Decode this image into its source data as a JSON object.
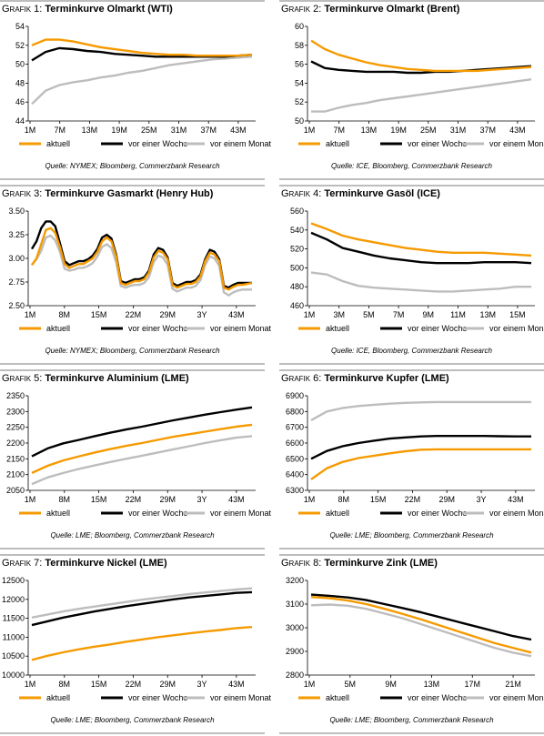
{
  "colors": {
    "aktuell": "#f59a00",
    "woche": "#000000",
    "monat": "#bdbdbd",
    "rule": "#bdbdbd"
  },
  "legend": {
    "aktuell": "aktuell",
    "woche": "vor einer Woche",
    "monat": "vor einem Monat"
  },
  "grafik_label": "Grafik",
  "charts": [
    {
      "number": "1:",
      "title": "Terminkurve Olmarkt (WTI)",
      "source": "Quelle: NYMEX; Bloomberg, Commerzbank Research",
      "ylim": [
        44,
        54
      ],
      "yticks": [
        "44",
        "46",
        "48",
        "50",
        "52",
        "54"
      ],
      "xticks": [
        "1M",
        "7M",
        "13M",
        "19M",
        "25M",
        "31M",
        "37M",
        "43M"
      ]
    },
    {
      "number": "2:",
      "title": "Terminkurve Olmarkt (Brent)",
      "source": "Quelle: ICE, Bloomberg, Commerzbank Research",
      "ylim": [
        50,
        60
      ],
      "yticks": [
        "50",
        "52",
        "54",
        "56",
        "58",
        "60"
      ],
      "xticks": [
        "1M",
        "7M",
        "13M",
        "19M",
        "25M",
        "31M",
        "37M",
        "43M"
      ]
    },
    {
      "number": "3:",
      "title": "Terminkurve Gasmarkt (Henry Hub)",
      "source": "Quelle: NYMEX; Bloomberg, Commerzbank Research",
      "ylim": [
        2.5,
        3.5
      ],
      "yticks": [
        "2.50",
        "2.75",
        "3.00",
        "3.25",
        "3.50"
      ],
      "xticks": [
        "1M",
        "8M",
        "15M",
        "22M",
        "29M",
        "3Y",
        "43M"
      ]
    },
    {
      "number": "4:",
      "title": "Terminkurve Gasöl (ICE)",
      "source": "Quelle: ICE, Bloomberg, Commerzbank Research",
      "ylim": [
        460,
        560
      ],
      "yticks": [
        "460",
        "480",
        "500",
        "520",
        "540",
        "560"
      ],
      "xticks": [
        "1M",
        "3M",
        "5M",
        "7M",
        "9M",
        "11M",
        "13M",
        "15M"
      ]
    },
    {
      "number": "5:",
      "title": " Terminkurve Aluminium (LME)",
      "source": "Quelle: LME; Bloomberg, Commerzbank Research",
      "ylim": [
        2050,
        2350
      ],
      "yticks": [
        "2050",
        "2100",
        "2150",
        "2200",
        "2250",
        "2300",
        "2350"
      ],
      "xticks": [
        "1M",
        "8M",
        "15M",
        "22M",
        "29M",
        "3Y",
        "43M"
      ]
    },
    {
      "number": "6:",
      "title": "Terminkurve Kupfer (LME)",
      "source": "Quelle: LME; Bloomberg, Commerzbank Research",
      "ylim": [
        6300,
        6900
      ],
      "yticks": [
        "6300",
        "6400",
        "6500",
        "6600",
        "6700",
        "6800",
        "6900"
      ],
      "xticks": [
        "1M",
        "8M",
        "15M",
        "22M",
        "29M",
        "3Y",
        "43M"
      ]
    },
    {
      "number": "7:",
      "title": "Terminkurve Nickel (LME)",
      "source": "Quelle: LME; Bloomberg, Commerzbank Research",
      "ylim": [
        10000,
        12500
      ],
      "yticks": [
        "10000",
        "10500",
        "11000",
        "11500",
        "12000",
        "12500"
      ],
      "xticks": [
        "1M",
        "8M",
        "15M",
        "22M",
        "29M",
        "3Y",
        "43M"
      ]
    },
    {
      "number": "8:",
      "title": "Terminkurve Zink (LME)",
      "source": "Quelle: LME; Bloomberg, Commerzbank Research",
      "ylim": [
        2800,
        3200
      ],
      "yticks": [
        "2800",
        "2900",
        "3000",
        "3100",
        "3200"
      ],
      "xticks": [
        "1M",
        "5M",
        "9M",
        "13M",
        "17M",
        "21M"
      ]
    }
  ],
  "chart_data": [
    {
      "type": "line",
      "title": "Terminkurve Olmarkt (WTI)",
      "xlabel": "",
      "ylabel": "",
      "ylim": [
        44,
        54
      ],
      "x": [
        "1M",
        "4M",
        "7M",
        "10M",
        "13M",
        "16M",
        "19M",
        "22M",
        "25M",
        "28M",
        "31M",
        "34M",
        "37M",
        "40M",
        "43M",
        "46M",
        "48M"
      ],
      "series": [
        {
          "name": "aktuell",
          "values": [
            52.0,
            52.6,
            52.6,
            52.4,
            52.1,
            51.8,
            51.6,
            51.4,
            51.2,
            51.1,
            51.0,
            51.0,
            50.9,
            50.9,
            50.9,
            50.9,
            51.0
          ]
        },
        {
          "name": "vor einer Woche",
          "values": [
            50.4,
            51.3,
            51.7,
            51.6,
            51.4,
            51.3,
            51.1,
            51.0,
            50.9,
            50.8,
            50.8,
            50.8,
            50.8,
            50.8,
            50.8,
            50.9,
            51.0
          ]
        },
        {
          "name": "vor einem Monat",
          "values": [
            45.8,
            47.2,
            47.8,
            48.1,
            48.3,
            48.6,
            48.8,
            49.1,
            49.3,
            49.6,
            49.9,
            50.1,
            50.3,
            50.5,
            50.6,
            50.7,
            50.8
          ]
        }
      ]
    },
    {
      "type": "line",
      "title": "Terminkurve Olmarkt (Brent)",
      "xlabel": "",
      "ylabel": "",
      "ylim": [
        50,
        60
      ],
      "x": [
        "1M",
        "4M",
        "7M",
        "10M",
        "13M",
        "16M",
        "19M",
        "22M",
        "25M",
        "28M",
        "31M",
        "34M",
        "37M",
        "40M",
        "43M",
        "46M",
        "48M"
      ],
      "series": [
        {
          "name": "aktuell",
          "values": [
            58.5,
            57.6,
            57.0,
            56.6,
            56.2,
            55.9,
            55.7,
            55.5,
            55.4,
            55.3,
            55.3,
            55.3,
            55.3,
            55.4,
            55.5,
            55.6,
            55.7
          ]
        },
        {
          "name": "vor einer Woche",
          "values": [
            56.3,
            55.6,
            55.4,
            55.3,
            55.2,
            55.2,
            55.2,
            55.1,
            55.1,
            55.2,
            55.2,
            55.3,
            55.4,
            55.5,
            55.6,
            55.7,
            55.8
          ]
        },
        {
          "name": "vor einem Monat",
          "values": [
            51.0,
            51.0,
            51.4,
            51.7,
            51.9,
            52.2,
            52.4,
            52.6,
            52.8,
            53.0,
            53.2,
            53.4,
            53.6,
            53.8,
            54.0,
            54.2,
            54.4
          ]
        }
      ]
    },
    {
      "type": "line",
      "title": "Terminkurve Gasmarkt (Henry Hub)",
      "xlabel": "",
      "ylabel": "",
      "ylim": [
        2.5,
        3.5
      ],
      "x": [
        "1M",
        "2M",
        "3M",
        "4M",
        "5M",
        "6M",
        "7M",
        "8M",
        "9M",
        "10M",
        "11M",
        "12M",
        "13M",
        "14M",
        "15M",
        "16M",
        "17M",
        "18M",
        "19M",
        "20M",
        "21M",
        "22M",
        "23M",
        "24M",
        "25M",
        "26M",
        "27M",
        "28M",
        "29M",
        "30M",
        "31M",
        "32M",
        "33M",
        "34M",
        "35M",
        "36M",
        "37M",
        "38M",
        "39M",
        "40M",
        "41M",
        "42M",
        "43M",
        "44M",
        "45M",
        "46M",
        "47M",
        "48M"
      ],
      "series": [
        {
          "name": "aktuell",
          "values": [
            2.93,
            3.0,
            3.15,
            3.3,
            3.32,
            3.27,
            3.12,
            2.94,
            2.9,
            2.92,
            2.94,
            2.94,
            2.97,
            3.0,
            3.07,
            3.18,
            3.22,
            3.18,
            3.02,
            2.74,
            2.72,
            2.74,
            2.76,
            2.76,
            2.78,
            2.85,
            3.01,
            3.08,
            3.06,
            2.99,
            2.72,
            2.69,
            2.71,
            2.73,
            2.73,
            2.75,
            2.81,
            2.97,
            3.06,
            3.04,
            2.97,
            2.69,
            2.67,
            2.7,
            2.72,
            2.72,
            2.73,
            2.74
          ]
        },
        {
          "name": "vor einer Woche",
          "values": [
            3.1,
            3.18,
            3.32,
            3.39,
            3.39,
            3.34,
            3.16,
            2.97,
            2.93,
            2.95,
            2.97,
            2.97,
            2.99,
            3.03,
            3.1,
            3.22,
            3.25,
            3.21,
            3.04,
            2.76,
            2.74,
            2.76,
            2.78,
            2.78,
            2.8,
            2.87,
            3.04,
            3.11,
            3.09,
            3.01,
            2.74,
            2.71,
            2.73,
            2.75,
            2.75,
            2.77,
            2.83,
            2.99,
            3.09,
            3.07,
            2.99,
            2.71,
            2.69,
            2.72,
            2.74,
            2.74,
            2.74,
            2.74
          ]
        },
        {
          "name": "vor einem Monat",
          "values": [
            2.93,
            2.99,
            3.08,
            3.22,
            3.24,
            3.19,
            3.07,
            2.89,
            2.87,
            2.88,
            2.9,
            2.9,
            2.92,
            2.95,
            3.02,
            3.12,
            3.15,
            3.11,
            2.96,
            2.71,
            2.69,
            2.71,
            2.72,
            2.72,
            2.74,
            2.8,
            2.96,
            3.03,
            3.01,
            2.93,
            2.68,
            2.65,
            2.67,
            2.69,
            2.69,
            2.71,
            2.77,
            2.93,
            3.02,
            3.0,
            2.92,
            2.64,
            2.61,
            2.64,
            2.66,
            2.67,
            2.67,
            2.67
          ]
        }
      ]
    },
    {
      "type": "line",
      "title": "Terminkurve Gasöl (ICE)",
      "xlabel": "",
      "ylabel": "",
      "ylim": [
        460,
        560
      ],
      "x": [
        "1M",
        "2M",
        "3M",
        "4M",
        "5M",
        "6M",
        "7M",
        "8M",
        "9M",
        "10M",
        "11M",
        "12M",
        "13M",
        "14M",
        "15M"
      ],
      "series": [
        {
          "name": "aktuell",
          "values": [
            547,
            541,
            534,
            530,
            527,
            524,
            521,
            519,
            517,
            516,
            516,
            516,
            515,
            514,
            513
          ]
        },
        {
          "name": "vor einer Woche",
          "values": [
            537,
            530,
            521,
            517,
            513,
            510,
            508,
            506,
            505,
            505,
            505,
            506,
            506,
            506,
            505
          ]
        },
        {
          "name": "vor einem Monat",
          "values": [
            495,
            493,
            486,
            481,
            479,
            478,
            477,
            476,
            475,
            475,
            476,
            477,
            478,
            480,
            480
          ]
        }
      ]
    },
    {
      "type": "line",
      "title": "Terminkurve Aluminium (LME)",
      "xlabel": "",
      "ylabel": "",
      "ylim": [
        2050,
        2350
      ],
      "x": [
        "1M",
        "4M",
        "8M",
        "12M",
        "15M",
        "19M",
        "22M",
        "26M",
        "29M",
        "33M",
        "3Y",
        "40M",
        "43M",
        "47M",
        "49M"
      ],
      "series": [
        {
          "name": "aktuell",
          "values": [
            2105,
            2128,
            2145,
            2158,
            2170,
            2181,
            2191,
            2200,
            2210,
            2220,
            2228,
            2236,
            2244,
            2252,
            2258
          ]
        },
        {
          "name": "vor einer Woche",
          "values": [
            2158,
            2183,
            2199,
            2210,
            2222,
            2233,
            2243,
            2252,
            2262,
            2272,
            2281,
            2290,
            2298,
            2306,
            2313
          ]
        },
        {
          "name": "vor einem Monat",
          "values": [
            2070,
            2091,
            2105,
            2118,
            2129,
            2140,
            2150,
            2160,
            2170,
            2180,
            2190,
            2200,
            2209,
            2217,
            2222
          ]
        }
      ]
    },
    {
      "type": "line",
      "title": "Terminkurve Kupfer (LME)",
      "xlabel": "",
      "ylabel": "",
      "ylim": [
        6300,
        6900
      ],
      "x": [
        "1M",
        "4M",
        "8M",
        "12M",
        "15M",
        "19M",
        "22M",
        "26M",
        "29M",
        "33M",
        "3Y",
        "40M",
        "43M",
        "47M",
        "49M"
      ],
      "series": [
        {
          "name": "aktuell",
          "values": [
            6370,
            6440,
            6480,
            6505,
            6520,
            6535,
            6548,
            6558,
            6560,
            6560,
            6560,
            6560,
            6560,
            6560,
            6560
          ]
        },
        {
          "name": "vor einer Woche",
          "values": [
            6500,
            6550,
            6580,
            6600,
            6615,
            6628,
            6636,
            6642,
            6645,
            6645,
            6645,
            6645,
            6643,
            6642,
            6642
          ]
        },
        {
          "name": "vor einem Monat",
          "values": [
            6745,
            6800,
            6822,
            6835,
            6843,
            6850,
            6855,
            6858,
            6860,
            6860,
            6860,
            6860,
            6860,
            6860,
            6860
          ]
        }
      ]
    },
    {
      "type": "line",
      "title": "Terminkurve Nickel (LME)",
      "xlabel": "",
      "ylabel": "",
      "ylim": [
        10000,
        12500
      ],
      "x": [
        "1M",
        "4M",
        "8M",
        "12M",
        "15M",
        "19M",
        "22M",
        "26M",
        "29M",
        "33M",
        "3Y",
        "40M",
        "43M",
        "47M",
        "49M"
      ],
      "series": [
        {
          "name": "aktuell",
          "values": [
            10400,
            10510,
            10600,
            10680,
            10750,
            10810,
            10880,
            10940,
            11000,
            11050,
            11100,
            11150,
            11190,
            11240,
            11270
          ]
        },
        {
          "name": "vor einer Woche",
          "values": [
            11320,
            11420,
            11520,
            11600,
            11680,
            11750,
            11820,
            11880,
            11940,
            12000,
            12050,
            12090,
            12130,
            12170,
            12190
          ]
        },
        {
          "name": "vor einem Monat",
          "values": [
            11520,
            11600,
            11680,
            11750,
            11810,
            11870,
            11930,
            11990,
            12040,
            12090,
            12140,
            12180,
            12220,
            12260,
            12290
          ]
        }
      ]
    },
    {
      "type": "line",
      "title": "Terminkurve Zink (LME)",
      "xlabel": "",
      "ylabel": "",
      "ylim": [
        2800,
        3200
      ],
      "x": [
        "1M",
        "3M",
        "5M",
        "7M",
        "9M",
        "11M",
        "13M",
        "15M",
        "17M",
        "19M",
        "21M",
        "23M",
        "25M"
      ],
      "series": [
        {
          "name": "aktuell",
          "values": [
            3130,
            3125,
            3115,
            3100,
            3080,
            3058,
            3035,
            3010,
            2985,
            2960,
            2935,
            2915,
            2895
          ]
        },
        {
          "name": "vor einer Woche",
          "values": [
            3140,
            3135,
            3128,
            3117,
            3100,
            3083,
            3065,
            3045,
            3025,
            3005,
            2985,
            2965,
            2950
          ]
        },
        {
          "name": "vor einem Monat",
          "values": [
            3095,
            3098,
            3093,
            3080,
            3060,
            3040,
            3015,
            2990,
            2965,
            2940,
            2915,
            2895,
            2880
          ]
        }
      ]
    }
  ]
}
